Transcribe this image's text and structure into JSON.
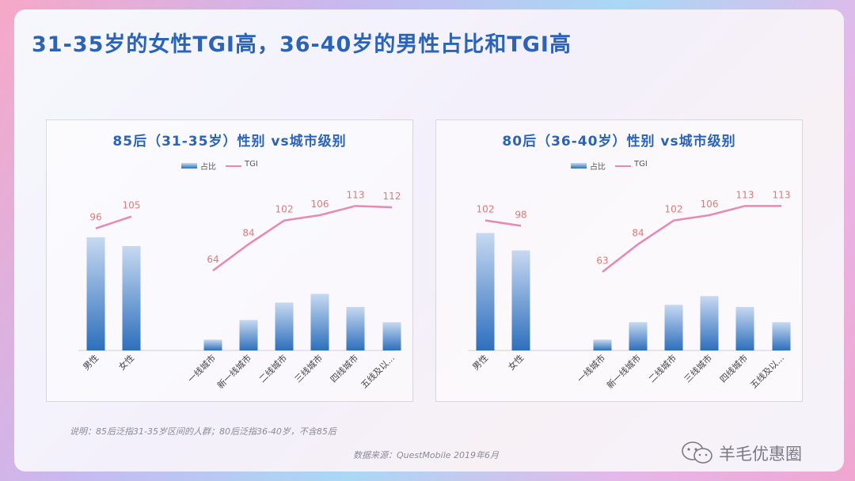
{
  "title": "31-35岁的女性TGI高，36-40岁的男性占比和TGI高",
  "legend": {
    "bar": "占比",
    "line": "TGI"
  },
  "colors": {
    "title": "#2a63b8",
    "bar_top": "#c7d9f1",
    "bar_bottom": "#2d6fbd",
    "line": "#e888b4",
    "label": "#e07a7a"
  },
  "chart_data": [
    {
      "type": "bar+line",
      "title": "85后（31-35岁）性别 vs城市级别",
      "categories": [
        "男性",
        "女性",
        "一线城市",
        "新一线城市",
        "二线城市",
        "三线城市",
        "四线城市",
        "五线及以..."
      ],
      "groups": [
        2,
        6
      ],
      "series": [
        {
          "name": "占比",
          "type": "bar",
          "values": [
            52,
            48,
            5,
            14,
            22,
            26,
            20,
            13
          ]
        },
        {
          "name": "TGI",
          "type": "line",
          "values": [
            96,
            105,
            64,
            84,
            102,
            106,
            113,
            112
          ]
        }
      ]
    },
    {
      "type": "bar+line",
      "title": "80后（36-40岁）性别 vs城市级别",
      "categories": [
        "男性",
        "女性",
        "一线城市",
        "新一线城市",
        "二线城市",
        "三线城市",
        "四线城市",
        "五线及以..."
      ],
      "groups": [
        2,
        6
      ],
      "series": [
        {
          "name": "占比",
          "type": "bar",
          "values": [
            54,
            46,
            5,
            13,
            21,
            25,
            20,
            13
          ]
        },
        {
          "name": "TGI",
          "type": "line",
          "values": [
            102,
            98,
            63,
            84,
            102,
            106,
            113,
            113
          ]
        }
      ]
    }
  ],
  "note": "说明：85后泛指31-35岁区间的人群；80后泛指36-40岁，不含85后",
  "source": "数据来源：QuestMobile 2019年6月",
  "watermark": "羊毛优惠圈"
}
